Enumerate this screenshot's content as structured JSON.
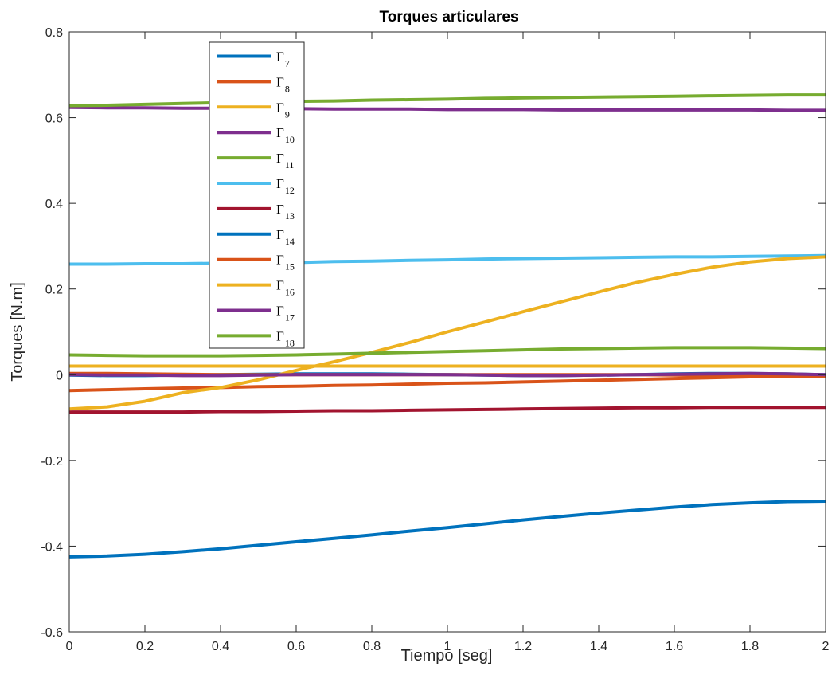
{
  "chart_data": {
    "type": "line",
    "title": "Torques articulares",
    "xlabel": "Tiempo [seg]",
    "ylabel": "Torques [N.m]",
    "xlim": [
      0,
      2
    ],
    "ylim": [
      -0.6,
      0.8
    ],
    "xticks": [
      "0",
      "0.2",
      "0.4",
      "0.6",
      "0.8",
      "1",
      "1.2",
      "1.4",
      "1.6",
      "1.8",
      "2"
    ],
    "yticks": [
      "-0.6",
      "-0.4",
      "-0.2",
      "0",
      "0.2",
      "0.4",
      "0.6",
      "0.8"
    ],
    "grid": false,
    "legend_position": "upper-left",
    "x": [
      0,
      0.1,
      0.2,
      0.3,
      0.4,
      0.5,
      0.6,
      0.7,
      0.8,
      0.9,
      1.0,
      1.1,
      1.2,
      1.3,
      1.4,
      1.5,
      1.6,
      1.7,
      1.8,
      1.9,
      2.0
    ],
    "series": [
      {
        "name": "Γ7",
        "symbol": "Γ",
        "sub": "7",
        "color": "#0072BD",
        "values": [
          -0.425,
          -0.423,
          -0.419,
          -0.413,
          -0.406,
          -0.398,
          -0.39,
          -0.382,
          -0.374,
          -0.365,
          -0.357,
          -0.348,
          -0.339,
          -0.331,
          -0.323,
          -0.316,
          -0.309,
          -0.303,
          -0.299,
          -0.296,
          -0.295
        ]
      },
      {
        "name": "Γ8",
        "symbol": "Γ",
        "sub": "8",
        "color": "#D95319",
        "values": [
          -0.037,
          -0.035,
          -0.033,
          -0.031,
          -0.03,
          -0.028,
          -0.027,
          -0.025,
          -0.024,
          -0.022,
          -0.02,
          -0.019,
          -0.017,
          -0.015,
          -0.013,
          -0.011,
          -0.009,
          -0.007,
          -0.005,
          -0.004,
          -0.004
        ]
      },
      {
        "name": "Γ9",
        "symbol": "Γ",
        "sub": "9",
        "color": "#EDB120",
        "values": [
          0.02,
          0.02,
          0.02,
          0.02,
          0.02,
          0.02,
          0.02,
          0.02,
          0.02,
          0.02,
          0.02,
          0.02,
          0.02,
          0.02,
          0.02,
          0.02,
          0.02,
          0.02,
          0.02,
          0.02,
          0.02
        ]
      },
      {
        "name": "Γ10",
        "symbol": "Γ",
        "sub": "10",
        "color": "#7E2F8E",
        "values": [
          0.624,
          0.623,
          0.623,
          0.622,
          0.622,
          0.621,
          0.621,
          0.62,
          0.62,
          0.62,
          0.619,
          0.619,
          0.619,
          0.618,
          0.618,
          0.618,
          0.618,
          0.618,
          0.618,
          0.617,
          0.617
        ]
      },
      {
        "name": "Γ11",
        "symbol": "Γ",
        "sub": "11",
        "color": "#77AC30",
        "values": [
          0.628,
          0.629,
          0.631,
          0.633,
          0.635,
          0.636,
          0.638,
          0.639,
          0.641,
          0.642,
          0.643,
          0.645,
          0.646,
          0.647,
          0.648,
          0.649,
          0.65,
          0.651,
          0.652,
          0.653,
          0.653
        ]
      },
      {
        "name": "Γ12",
        "symbol": "Γ",
        "sub": "12",
        "color": "#4DBEEE",
        "values": [
          0.258,
          0.258,
          0.259,
          0.259,
          0.26,
          0.261,
          0.262,
          0.264,
          0.265,
          0.267,
          0.268,
          0.27,
          0.271,
          0.272,
          0.273,
          0.274,
          0.275,
          0.275,
          0.276,
          0.277,
          0.278
        ]
      },
      {
        "name": "Γ13",
        "symbol": "Γ",
        "sub": "13",
        "color": "#A2142F",
        "values": [
          -0.087,
          -0.087,
          -0.087,
          -0.087,
          -0.086,
          -0.086,
          -0.085,
          -0.084,
          -0.084,
          -0.083,
          -0.082,
          -0.081,
          -0.08,
          -0.079,
          -0.078,
          -0.077,
          -0.077,
          -0.076,
          -0.076,
          -0.076,
          -0.076
        ]
      },
      {
        "name": "Γ14",
        "symbol": "Γ",
        "sub": "14",
        "color": "#0072BD",
        "values": [
          -0.001,
          -0.002,
          -0.002,
          -0.001,
          0.0,
          0.001,
          0.002,
          0.002,
          0.002,
          0.001,
          0.0,
          -0.001,
          -0.002,
          -0.002,
          -0.001,
          0.0,
          0.002,
          0.003,
          0.003,
          0.002,
          0.0
        ]
      },
      {
        "name": "Γ15",
        "symbol": "Γ",
        "sub": "15",
        "color": "#D95319",
        "values": [
          0.003,
          0.003,
          0.002,
          0.001,
          0.0,
          0.0,
          0.0,
          0.0,
          0.0,
          0.0,
          0.0,
          0.0,
          0.0,
          0.0,
          0.0,
          0.0,
          -0.001,
          -0.002,
          -0.003,
          -0.004,
          -0.005
        ]
      },
      {
        "name": "Γ16",
        "symbol": "Γ",
        "sub": "16",
        "color": "#EDB120",
        "values": [
          -0.08,
          -0.075,
          -0.062,
          -0.042,
          -0.03,
          -0.012,
          0.01,
          0.03,
          0.052,
          0.075,
          0.1,
          0.123,
          0.147,
          0.17,
          0.193,
          0.215,
          0.234,
          0.251,
          0.263,
          0.271,
          0.275
        ]
      },
      {
        "name": "Γ17",
        "symbol": "Γ",
        "sub": "17",
        "color": "#7E2F8E",
        "values": [
          0.0,
          -0.001,
          -0.001,
          -0.002,
          -0.002,
          -0.001,
          0.0,
          0.0,
          0.0,
          0.0,
          0.0,
          -0.001,
          -0.002,
          -0.002,
          -0.001,
          0.0,
          0.001,
          0.002,
          0.003,
          0.002,
          0.0
        ]
      },
      {
        "name": "Γ18",
        "symbol": "Γ",
        "sub": "18",
        "color": "#77AC30",
        "values": [
          0.046,
          0.045,
          0.044,
          0.044,
          0.044,
          0.045,
          0.046,
          0.048,
          0.05,
          0.052,
          0.054,
          0.056,
          0.058,
          0.06,
          0.061,
          0.062,
          0.063,
          0.063,
          0.063,
          0.062,
          0.061
        ]
      }
    ]
  }
}
